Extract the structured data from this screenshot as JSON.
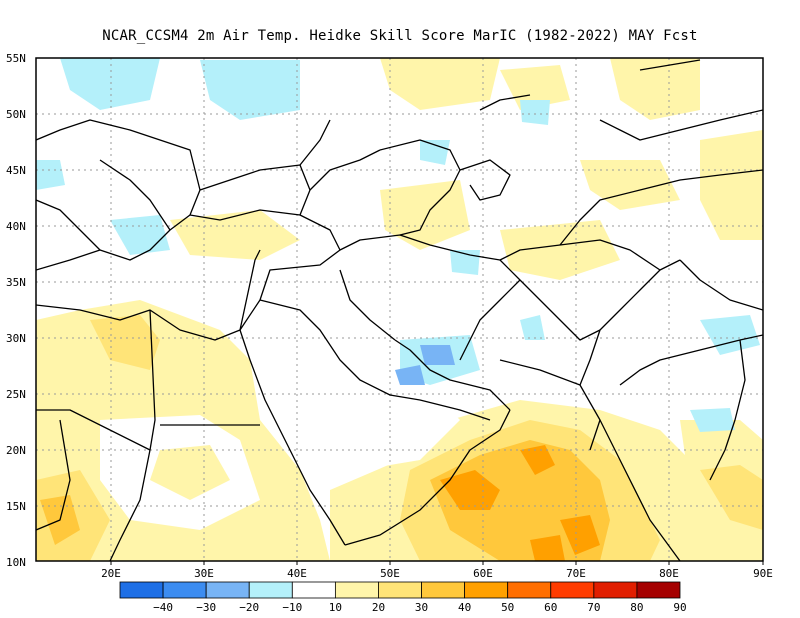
{
  "title": "NCAR_CCSM4  2m Air Temp. Heidke Skill Score MarIC (1982-2022) MAY Fcst",
  "map": {
    "lon_range": [
      12,
      90
    ],
    "lat_range": [
      10,
      55
    ],
    "lat_labels": [
      "55N",
      "50N",
      "45N",
      "40N",
      "35N",
      "30N",
      "25N",
      "20N",
      "15N",
      "10N"
    ],
    "lon_labels": [
      "20E",
      "30E",
      "40E",
      "50E",
      "60E",
      "70E",
      "80E",
      "90E"
    ],
    "grid": "dotted"
  },
  "colorbar": {
    "labels": [
      "-40",
      "-30",
      "-20",
      "-10",
      "10",
      "20",
      "30",
      "40",
      "50",
      "60",
      "70",
      "80",
      "90"
    ],
    "colors": [
      "#1e6fe6",
      "#3c8cf0",
      "#78b4f5",
      "#b4f0fa",
      "#ffffff",
      "#fff5aa",
      "#ffe478",
      "#ffc83c",
      "#ffa000",
      "#ff6e00",
      "#ff3c00",
      "#e11e00",
      "#a50000"
    ]
  },
  "legend_icon": "colorbar-icon"
}
